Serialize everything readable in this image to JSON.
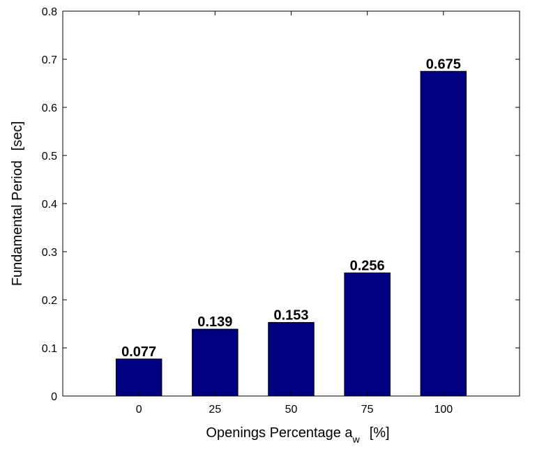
{
  "chart_data": {
    "type": "bar",
    "categories": [
      "0",
      "25",
      "50",
      "75",
      "100"
    ],
    "values": [
      0.077,
      0.139,
      0.153,
      0.256,
      0.675
    ],
    "data_labels": [
      "0.077",
      "0.139",
      "0.153",
      "0.256",
      "0.675"
    ],
    "title": "",
    "xlabel": "Openings Percentage a",
    "xlabel_subscript": "w",
    "xlabel_unit": "[%]",
    "ylabel": "Fundamental Period",
    "ylabel_unit": "[sec]",
    "ylim": [
      0,
      0.8
    ],
    "yticks": [
      0,
      0.1,
      0.2,
      0.3,
      0.4,
      0.5,
      0.6,
      0.7,
      0.8
    ],
    "ytick_labels": [
      "0",
      "0.1",
      "0.2",
      "0.3",
      "0.4",
      "0.5",
      "0.6",
      "0.7",
      "0.8"
    ],
    "grid": false,
    "bar_color": "#000080",
    "bar_edge_color": "#000000"
  }
}
